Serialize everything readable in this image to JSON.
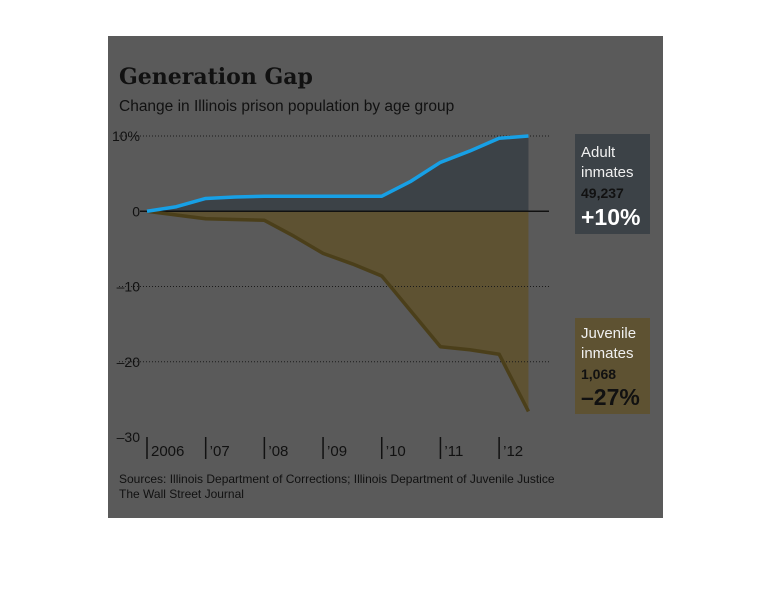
{
  "chart_data": {
    "type": "line",
    "title": "Generation Gap",
    "subtitle": "Change in Illinois prison population by age group",
    "x": [
      2006,
      2006.5,
      2007,
      2007.5,
      2008,
      2008.5,
      2009,
      2009.5,
      2010,
      2010.5,
      2011,
      2011.5,
      2012,
      2012.5
    ],
    "x_tick_labels": [
      "2006",
      "’07",
      "’08",
      "’09",
      "’10",
      "’11",
      "’12"
    ],
    "y_tick_labels": [
      "10%",
      "0",
      "–10",
      "–20",
      "–30"
    ],
    "ylim": [
      -30,
      10
    ],
    "grid": true,
    "series": [
      {
        "name": "Adult inmates",
        "color": "#17a0e6",
        "values": [
          0,
          0.6,
          1.7,
          1.9,
          2.0,
          2.0,
          2.0,
          2.0,
          2.0,
          4.0,
          6.5,
          8.0,
          9.7,
          10.0
        ]
      },
      {
        "name": "Juvenile inmates",
        "color": "#4b3f1a",
        "values": [
          0,
          -0.5,
          -1.0,
          -1.1,
          -1.2,
          -3.3,
          -5.6,
          -7.0,
          -8.6,
          -13.3,
          -18.0,
          -18.4,
          -19.0,
          -26.6
        ]
      }
    ],
    "annotations": [
      {
        "line1": "Adult",
        "line2": "inmates",
        "count": "49,237",
        "change": "+10%"
      },
      {
        "line1": "Juvenile",
        "line2": "inmates",
        "count": "1,068",
        "change": "–27%"
      }
    ]
  },
  "colors": {
    "background": "#5a5a5a",
    "adult_fill": "#3c4247",
    "juvenile_fill": "#5e5232",
    "adult_line": "#17a0e6",
    "adult_line_dark": "#0a3c5c",
    "juvenile_line": "#4b3f1a"
  },
  "footer": {
    "sources": "Sources: Illinois Department of Corrections; Illinois Department of Juvenile Justice",
    "publisher": "The Wall Street Journal"
  }
}
